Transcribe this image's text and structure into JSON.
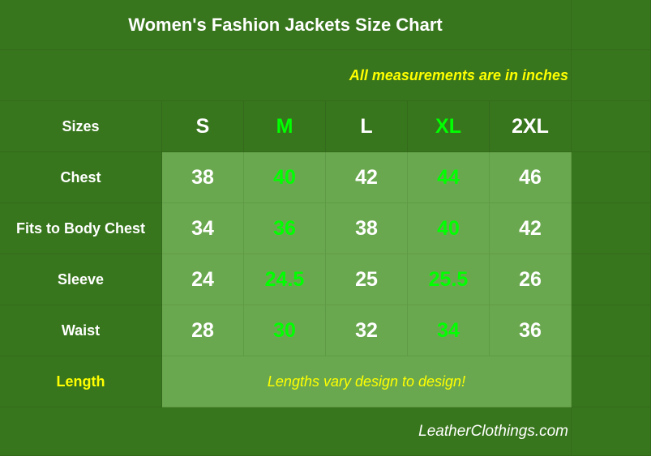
{
  "title": "Women's Fashion Jackets Size Chart",
  "note": "All measurements are in inches",
  "header": {
    "label": "Sizes",
    "sizes": [
      "S",
      "M",
      "L",
      "XL",
      "2XL"
    ]
  },
  "rows": [
    {
      "label": "Chest",
      "values": [
        "38",
        "40",
        "42",
        "44",
        "46"
      ]
    },
    {
      "label": "Fits to Body Chest",
      "values": [
        "34",
        "36",
        "38",
        "40",
        "42"
      ]
    },
    {
      "label": "Sleeve",
      "values": [
        "24",
        "24.5",
        "25",
        "25.5",
        "26"
      ]
    },
    {
      "label": "Waist",
      "values": [
        "28",
        "30",
        "32",
        "34",
        "36"
      ]
    }
  ],
  "length": {
    "label": "Length",
    "message": "Lengths vary design to design!"
  },
  "footer": "LeatherClothings.com",
  "colors": {
    "background": "#38761d",
    "value_cell": "#6aa84f",
    "white_text": "#ffffff",
    "accent_green": "#00ff00",
    "accent_yellow": "#ffff00"
  }
}
